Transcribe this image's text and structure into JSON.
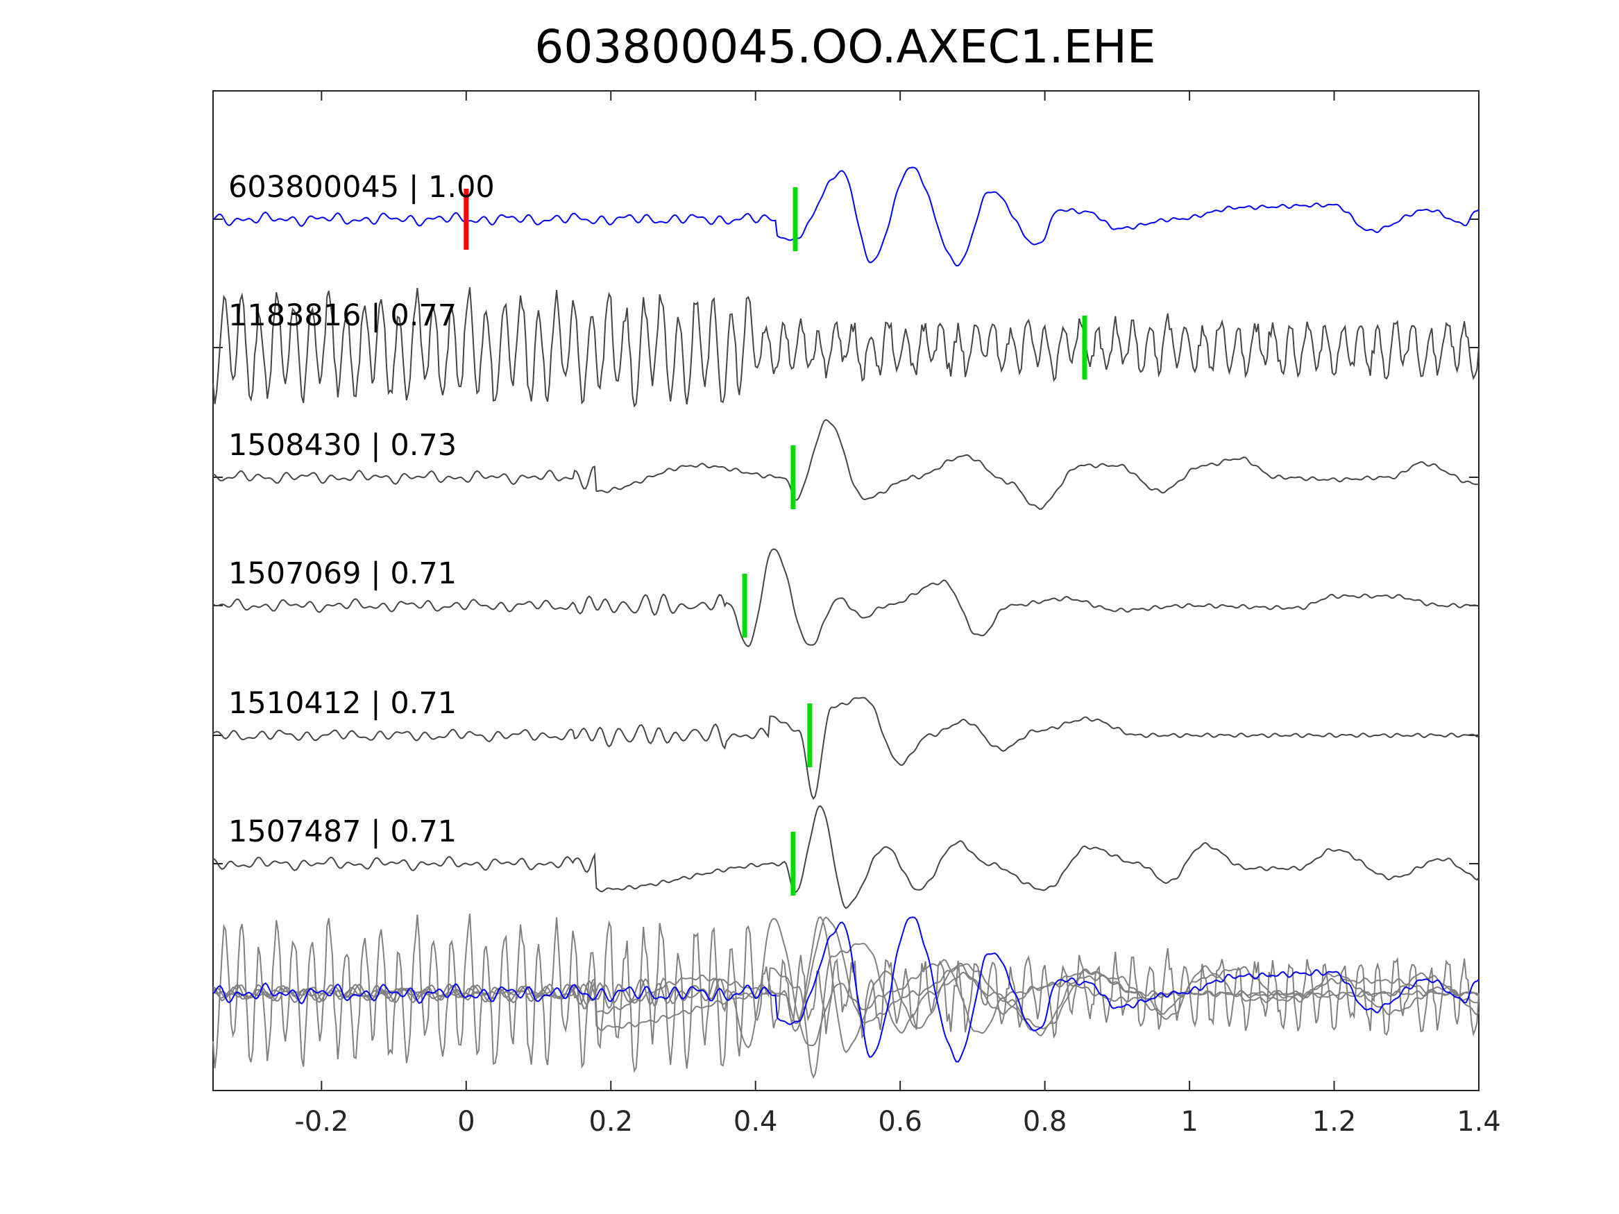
{
  "chart_data": {
    "type": "line",
    "title": "603800045.OO.AXEC1.EHE",
    "xlabel": "",
    "ylabel": "",
    "xlim": [
      -0.35,
      1.4
    ],
    "x_ticks": [
      -0.2,
      0,
      0.2,
      0.4,
      0.6,
      0.8,
      1,
      1.2,
      1.4
    ],
    "x_tick_labels": [
      "-0.2",
      "0",
      "0.2",
      "0.4",
      "0.6",
      "0.8",
      "1",
      "1.2",
      "1.4"
    ],
    "grid": false,
    "legend": "none",
    "colors": {
      "template": "#0000ff",
      "match": "#454545",
      "overlay_match": "#808080",
      "origin_pick": "#ff0000",
      "phase_pick": "#00dd00",
      "axes": "#262626"
    },
    "traces": [
      {
        "label": "603800045 | 1.00",
        "role": "template",
        "origin_time": 0.0,
        "pick_time": 0.455,
        "peaks": [
          [
            0.43,
            -0.35
          ],
          [
            0.45,
            -0.45
          ],
          [
            0.52,
            1.0
          ],
          [
            0.56,
            -0.9
          ],
          [
            0.615,
            1.1
          ],
          [
            0.68,
            -0.95
          ],
          [
            0.725,
            0.6
          ],
          [
            0.79,
            -0.55
          ],
          [
            0.82,
            0.2
          ],
          [
            0.86,
            0.15
          ],
          [
            0.9,
            -0.2
          ],
          [
            0.98,
            0.0
          ],
          [
            1.07,
            0.25
          ],
          [
            1.2,
            0.3
          ],
          [
            1.25,
            -0.25
          ],
          [
            1.33,
            0.2
          ],
          [
            1.38,
            -0.1
          ],
          [
            1.4,
            0.2
          ]
        ]
      },
      {
        "label": "1183816 | 0.77",
        "role": "match",
        "pick_time": 0.855,
        "peaks": []
      },
      {
        "label": "1508430 | 0.73",
        "role": "match",
        "pick_time": 0.452,
        "peaks": [
          [
            0.18,
            -0.3
          ],
          [
            0.32,
            0.25
          ],
          [
            0.44,
            0.0
          ],
          [
            0.455,
            -0.45
          ],
          [
            0.5,
            1.2
          ],
          [
            0.55,
            -0.45
          ],
          [
            0.62,
            0.0
          ],
          [
            0.69,
            0.45
          ],
          [
            0.75,
            -0.1
          ],
          [
            0.79,
            -0.65
          ],
          [
            0.85,
            0.25
          ],
          [
            0.9,
            0.25
          ],
          [
            0.96,
            -0.3
          ],
          [
            1.02,
            0.25
          ],
          [
            1.07,
            0.4
          ],
          [
            1.12,
            0.0
          ],
          [
            1.2,
            -0.05
          ],
          [
            1.28,
            0.0
          ],
          [
            1.32,
            0.3
          ],
          [
            1.4,
            -0.15
          ]
        ]
      },
      {
        "label": "1507069 | 0.71",
        "role": "match",
        "pick_time": 0.385,
        "peaks": [
          [
            0.36,
            0.1
          ],
          [
            0.39,
            -0.85
          ],
          [
            0.425,
            1.2
          ],
          [
            0.475,
            -0.85
          ],
          [
            0.515,
            0.15
          ],
          [
            0.55,
            -0.25
          ],
          [
            0.58,
            0.0
          ],
          [
            0.66,
            0.5
          ],
          [
            0.71,
            -0.65
          ],
          [
            0.75,
            0.0
          ],
          [
            0.83,
            0.15
          ],
          [
            0.9,
            -0.1
          ],
          [
            1.0,
            0.0
          ],
          [
            1.15,
            -0.05
          ],
          [
            1.2,
            0.2
          ],
          [
            1.28,
            0.2
          ],
          [
            1.35,
            0.0
          ],
          [
            1.4,
            0.0
          ]
        ]
      },
      {
        "label": "1510412 | 0.71",
        "role": "match",
        "pick_time": 0.475,
        "peaks": [
          [
            0.42,
            0.4
          ],
          [
            0.46,
            0.1
          ],
          [
            0.48,
            -1.3
          ],
          [
            0.505,
            0.6
          ],
          [
            0.55,
            0.8
          ],
          [
            0.6,
            -0.6
          ],
          [
            0.64,
            0.0
          ],
          [
            0.69,
            0.3
          ],
          [
            0.74,
            -0.3
          ],
          [
            0.79,
            0.1
          ],
          [
            0.86,
            0.35
          ],
          [
            0.93,
            0.0
          ],
          [
            1.1,
            0.0
          ],
          [
            1.2,
            0.0
          ],
          [
            1.4,
            0.0
          ]
        ]
      },
      {
        "label": "1507487 | 0.71",
        "role": "match",
        "pick_time": 0.452,
        "peaks": [
          [
            0.18,
            -0.55
          ],
          [
            0.44,
            0.0
          ],
          [
            0.455,
            -0.6
          ],
          [
            0.49,
            1.2
          ],
          [
            0.525,
            -0.9
          ],
          [
            0.58,
            0.35
          ],
          [
            0.625,
            -0.55
          ],
          [
            0.68,
            0.45
          ],
          [
            0.72,
            0.0
          ],
          [
            0.8,
            -0.55
          ],
          [
            0.86,
            0.35
          ],
          [
            0.93,
            0.0
          ],
          [
            0.97,
            -0.4
          ],
          [
            1.02,
            0.4
          ],
          [
            1.08,
            -0.1
          ],
          [
            1.15,
            -0.1
          ],
          [
            1.2,
            0.3
          ],
          [
            1.28,
            -0.3
          ],
          [
            1.35,
            0.1
          ],
          [
            1.4,
            -0.3
          ]
        ]
      }
    ]
  }
}
